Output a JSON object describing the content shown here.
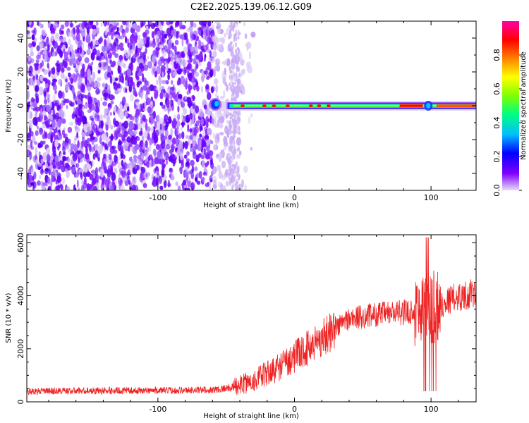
{
  "title": "C2E2.2025.139.06.12.G09",
  "chart_data": [
    {
      "type": "heatmap",
      "xlabel": "Height of straight line (km)",
      "ylabel": "Frequency (Hz)",
      "xlim": [
        -196,
        133
      ],
      "ylim": [
        -50,
        50
      ],
      "xticks": [
        -100,
        0,
        100
      ],
      "yticks": [
        -40,
        -20,
        0,
        20,
        40
      ],
      "colorbar": {
        "label": "Normalized spectral amplitude",
        "range": [
          0,
          1
        ],
        "ticks": [
          "0.0",
          "0.2",
          "0.4",
          "0.6",
          "0.8"
        ],
        "colors": [
          "#e8dcf8",
          "#7f00ff",
          "#0000ff",
          "#00bfff",
          "#00ff80",
          "#80ff00",
          "#ffff00",
          "#ff8000",
          "#ff0000",
          "#ff00aa"
        ]
      },
      "features": {
        "noise_region_x": [
          -196,
          -30
        ],
        "carrier_start_x": -60,
        "carrier_freq_hz": 0,
        "saturated_band_x": [
          77,
          133
        ]
      }
    },
    {
      "type": "line",
      "xlabel": "Height of straight line (km)",
      "ylabel": "SNR (10 * v/v)",
      "xlim": [
        -196,
        133
      ],
      "ylim": [
        0,
        6300
      ],
      "xticks": [
        -100,
        0,
        100
      ],
      "yticks": [
        0,
        2000,
        4000,
        6000
      ],
      "color": "#ee2222",
      "trend": {
        "x": [
          -196,
          -150,
          -100,
          -60,
          -45,
          -30,
          -15,
          0,
          20,
          38,
          60,
          85,
          95,
          105,
          115,
          133
        ],
        "y": [
          400,
          420,
          430,
          450,
          550,
          800,
          1200,
          1700,
          2400,
          3100,
          3300,
          3400,
          3500,
          3600,
          3900,
          4100
        ]
      }
    }
  ]
}
